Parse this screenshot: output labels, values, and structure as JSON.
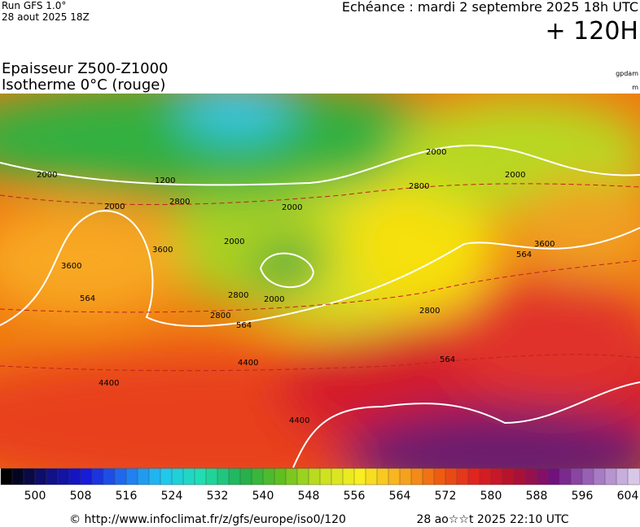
{
  "header": {
    "run": "Run GFS 1.0°",
    "run_date": "28 aout 2025 18Z",
    "valid": "Echéance : mardi 2 septembre 2025 18h UTC",
    "lead": "+ 120H"
  },
  "map": {
    "title": "Epaisseur Z500-Z1000",
    "subtitle": "Isotherme 0°C (rouge)",
    "unit_top": "gpdam",
    "unit_bottom": "m",
    "contour_labels": [
      "2000",
      "1200",
      "2800",
      "2000",
      "2000",
      "2800",
      "2000",
      "3600",
      "564",
      "2800",
      "564",
      "3600",
      "2000",
      "2800",
      "4400",
      "564",
      "3600",
      "4400",
      "564",
      "2000",
      "2000",
      "2800",
      "4400"
    ]
  },
  "legend": {
    "labels": [
      500,
      508,
      516,
      524,
      532,
      540,
      548,
      556,
      564,
      572,
      580,
      588,
      596,
      604
    ]
  },
  "footer": {
    "source": "© http://www.infoclimat.fr/z/gfs/europe/iso0/120",
    "generated": "28 ao☆☆t 2025 22:10 UTC"
  }
}
